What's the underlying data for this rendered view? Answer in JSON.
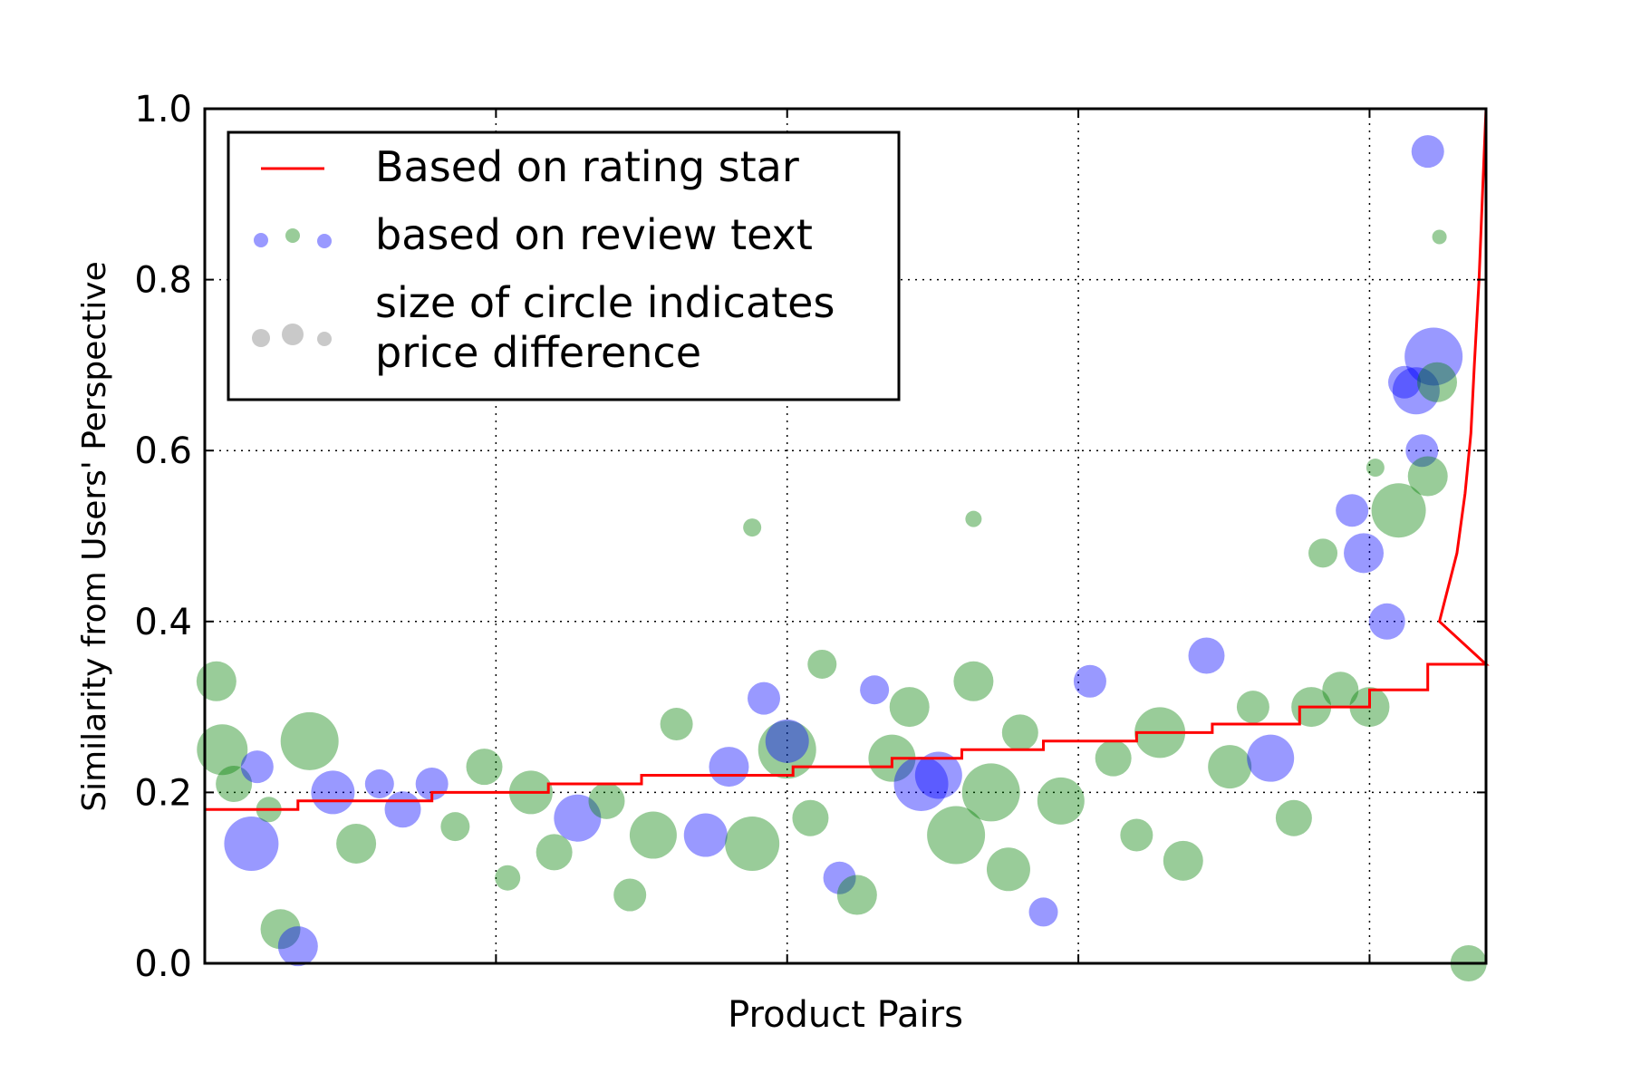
{
  "chart_data": {
    "type": "scatter",
    "title": "",
    "xlabel": "Product Pairs",
    "ylabel": "Similarity from Users' Perspective",
    "xlim": [
      0,
      1100
    ],
    "ylim": [
      0.0,
      1.0
    ],
    "yticks": [
      "0.0",
      "0.2",
      "0.4",
      "0.6",
      "0.8",
      "1.0"
    ],
    "ytick_values": [
      0.0,
      0.2,
      0.4,
      0.6,
      0.8,
      1.0
    ],
    "xgrid_values": [
      250,
      500,
      750,
      1000
    ],
    "grid": true,
    "legend_position": "top-left",
    "legend": [
      {
        "label": "Based on rating star",
        "marker": "line",
        "color": "#ff0000"
      },
      {
        "label": "based on review text",
        "marker": "dots",
        "colors": [
          "#0000ff",
          "#008000",
          "#0000ff"
        ]
      },
      {
        "label": "size of circle indicates\nprice difference",
        "marker": "dots",
        "colors": [
          "#bbbbbb",
          "#bbbbbb",
          "#bbbbbb"
        ]
      }
    ],
    "series": [
      {
        "name": "Based on rating star",
        "kind": "step-line",
        "color": "#ff0000",
        "x": [
          0,
          80,
          80,
          195,
          195,
          295,
          295,
          375,
          375,
          505,
          505,
          590,
          590,
          650,
          650,
          720,
          720,
          800,
          800,
          865,
          865,
          940,
          940,
          1000,
          1000,
          1050,
          1050,
          1100
        ],
        "y": [
          0.18,
          0.18,
          0.19,
          0.19,
          0.2,
          0.2,
          0.21,
          0.21,
          0.22,
          0.22,
          0.23,
          0.23,
          0.24,
          0.24,
          0.25,
          0.25,
          0.26,
          0.26,
          0.27,
          0.27,
          0.28,
          0.28,
          0.3,
          0.3,
          0.32,
          0.32,
          0.35,
          0.35
        ]
      },
      {
        "name": "based on review text",
        "kind": "bubbles",
        "points": [
          {
            "x": 10,
            "y": 0.33,
            "s": 22,
            "c": "green"
          },
          {
            "x": 15,
            "y": 0.25,
            "s": 28,
            "c": "green"
          },
          {
            "x": 25,
            "y": 0.21,
            "s": 20,
            "c": "green"
          },
          {
            "x": 40,
            "y": 0.14,
            "s": 30,
            "c": "blue"
          },
          {
            "x": 45,
            "y": 0.23,
            "s": 18,
            "c": "blue"
          },
          {
            "x": 55,
            "y": 0.18,
            "s": 14,
            "c": "green"
          },
          {
            "x": 65,
            "y": 0.04,
            "s": 22,
            "c": "green"
          },
          {
            "x": 80,
            "y": 0.02,
            "s": 22,
            "c": "blue"
          },
          {
            "x": 90,
            "y": 0.26,
            "s": 32,
            "c": "green"
          },
          {
            "x": 110,
            "y": 0.2,
            "s": 24,
            "c": "blue"
          },
          {
            "x": 130,
            "y": 0.14,
            "s": 22,
            "c": "green"
          },
          {
            "x": 150,
            "y": 0.21,
            "s": 16,
            "c": "blue"
          },
          {
            "x": 170,
            "y": 0.18,
            "s": 20,
            "c": "blue"
          },
          {
            "x": 195,
            "y": 0.21,
            "s": 18,
            "c": "blue"
          },
          {
            "x": 215,
            "y": 0.16,
            "s": 16,
            "c": "green"
          },
          {
            "x": 240,
            "y": 0.23,
            "s": 20,
            "c": "green"
          },
          {
            "x": 260,
            "y": 0.1,
            "s": 14,
            "c": "green"
          },
          {
            "x": 280,
            "y": 0.2,
            "s": 24,
            "c": "green"
          },
          {
            "x": 300,
            "y": 0.13,
            "s": 20,
            "c": "green"
          },
          {
            "x": 320,
            "y": 0.17,
            "s": 26,
            "c": "blue"
          },
          {
            "x": 345,
            "y": 0.19,
            "s": 20,
            "c": "green"
          },
          {
            "x": 365,
            "y": 0.08,
            "s": 18,
            "c": "green"
          },
          {
            "x": 385,
            "y": 0.15,
            "s": 26,
            "c": "green"
          },
          {
            "x": 405,
            "y": 0.28,
            "s": 18,
            "c": "green"
          },
          {
            "x": 430,
            "y": 0.15,
            "s": 24,
            "c": "blue"
          },
          {
            "x": 450,
            "y": 0.23,
            "s": 22,
            "c": "blue"
          },
          {
            "x": 470,
            "y": 0.14,
            "s": 30,
            "c": "green"
          },
          {
            "x": 480,
            "y": 0.31,
            "s": 18,
            "c": "blue"
          },
          {
            "x": 470,
            "y": 0.51,
            "s": 10,
            "c": "green"
          },
          {
            "x": 500,
            "y": 0.25,
            "s": 32,
            "c": "green"
          },
          {
            "x": 500,
            "y": 0.26,
            "s": 24,
            "c": "blue"
          },
          {
            "x": 520,
            "y": 0.17,
            "s": 20,
            "c": "green"
          },
          {
            "x": 530,
            "y": 0.35,
            "s": 16,
            "c": "green"
          },
          {
            "x": 545,
            "y": 0.1,
            "s": 18,
            "c": "blue"
          },
          {
            "x": 560,
            "y": 0.08,
            "s": 22,
            "c": "green"
          },
          {
            "x": 575,
            "y": 0.32,
            "s": 16,
            "c": "blue"
          },
          {
            "x": 590,
            "y": 0.24,
            "s": 26,
            "c": "green"
          },
          {
            "x": 605,
            "y": 0.3,
            "s": 22,
            "c": "green"
          },
          {
            "x": 615,
            "y": 0.21,
            "s": 30,
            "c": "blue"
          },
          {
            "x": 630,
            "y": 0.22,
            "s": 26,
            "c": "blue"
          },
          {
            "x": 645,
            "y": 0.15,
            "s": 32,
            "c": "green"
          },
          {
            "x": 660,
            "y": 0.52,
            "s": 9,
            "c": "green"
          },
          {
            "x": 660,
            "y": 0.33,
            "s": 22,
            "c": "green"
          },
          {
            "x": 675,
            "y": 0.2,
            "s": 32,
            "c": "green"
          },
          {
            "x": 690,
            "y": 0.11,
            "s": 24,
            "c": "green"
          },
          {
            "x": 700,
            "y": 0.27,
            "s": 20,
            "c": "green"
          },
          {
            "x": 720,
            "y": 0.06,
            "s": 16,
            "c": "blue"
          },
          {
            "x": 735,
            "y": 0.19,
            "s": 26,
            "c": "green"
          },
          {
            "x": 760,
            "y": 0.33,
            "s": 18,
            "c": "blue"
          },
          {
            "x": 780,
            "y": 0.24,
            "s": 20,
            "c": "green"
          },
          {
            "x": 800,
            "y": 0.15,
            "s": 18,
            "c": "green"
          },
          {
            "x": 820,
            "y": 0.27,
            "s": 28,
            "c": "green"
          },
          {
            "x": 840,
            "y": 0.12,
            "s": 22,
            "c": "green"
          },
          {
            "x": 860,
            "y": 0.36,
            "s": 20,
            "c": "blue"
          },
          {
            "x": 880,
            "y": 0.23,
            "s": 24,
            "c": "green"
          },
          {
            "x": 900,
            "y": 0.3,
            "s": 18,
            "c": "green"
          },
          {
            "x": 915,
            "y": 0.24,
            "s": 26,
            "c": "blue"
          },
          {
            "x": 935,
            "y": 0.17,
            "s": 20,
            "c": "green"
          },
          {
            "x": 950,
            "y": 0.3,
            "s": 22,
            "c": "green"
          },
          {
            "x": 960,
            "y": 0.48,
            "s": 16,
            "c": "green"
          },
          {
            "x": 975,
            "y": 0.32,
            "s": 20,
            "c": "green"
          },
          {
            "x": 985,
            "y": 0.53,
            "s": 18,
            "c": "blue"
          },
          {
            "x": 995,
            "y": 0.48,
            "s": 22,
            "c": "blue"
          },
          {
            "x": 1000,
            "y": 0.3,
            "s": 22,
            "c": "green"
          },
          {
            "x": 1005,
            "y": 0.58,
            "s": 10,
            "c": "green"
          },
          {
            "x": 1015,
            "y": 0.4,
            "s": 20,
            "c": "blue"
          },
          {
            "x": 1025,
            "y": 0.53,
            "s": 30,
            "c": "green"
          },
          {
            "x": 1030,
            "y": 0.68,
            "s": 18,
            "c": "blue"
          },
          {
            "x": 1040,
            "y": 0.67,
            "s": 26,
            "c": "blue"
          },
          {
            "x": 1045,
            "y": 0.6,
            "s": 18,
            "c": "blue"
          },
          {
            "x": 1050,
            "y": 0.57,
            "s": 22,
            "c": "green"
          },
          {
            "x": 1055,
            "y": 0.71,
            "s": 32,
            "c": "blue"
          },
          {
            "x": 1058,
            "y": 0.68,
            "s": 22,
            "c": "green"
          },
          {
            "x": 1050,
            "y": 0.95,
            "s": 18,
            "c": "blue"
          },
          {
            "x": 1060,
            "y": 0.85,
            "s": 8,
            "c": "green"
          },
          {
            "x": 1085,
            "y": 0.0,
            "s": 20,
            "c": "green"
          }
        ]
      }
    ]
  }
}
